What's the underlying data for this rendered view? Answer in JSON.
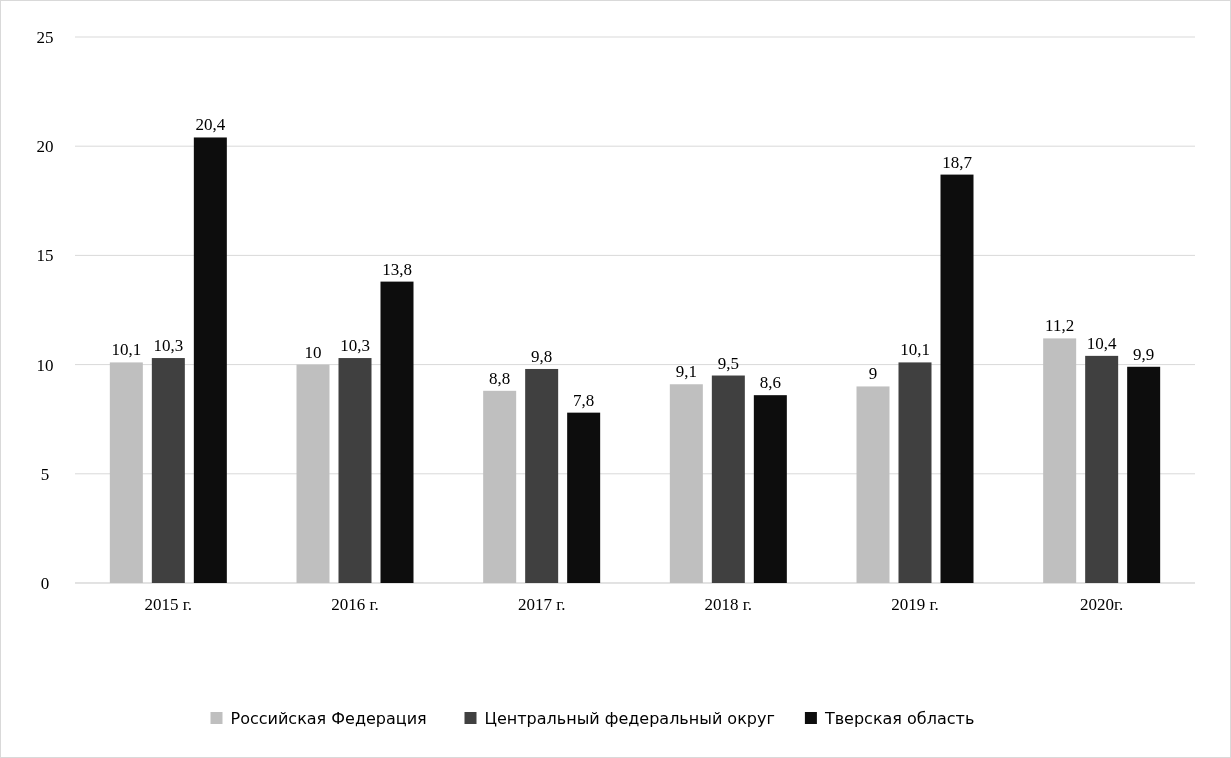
{
  "chart_data": {
    "type": "bar",
    "categories": [
      "2015 г.",
      "2016 г.",
      "2017 г.",
      "2018 г.",
      "2019 г.",
      "2020г."
    ],
    "series": [
      {
        "name": "Российская Федерация",
        "color": "#bfbfbf",
        "values": [
          10.1,
          10,
          8.8,
          9.1,
          9,
          11.2
        ],
        "value_labels": [
          "10,1",
          "10",
          "8,8",
          "9,1",
          "9",
          "11,2"
        ]
      },
      {
        "name": "Центральный федеральный округ",
        "color": "#404040",
        "values": [
          10.3,
          10.3,
          9.8,
          9.5,
          10.1,
          10.4
        ],
        "value_labels": [
          "10,3",
          "10,3",
          "9,8",
          "9,5",
          "10,1",
          "10,4"
        ]
      },
      {
        "name": "Тверская область",
        "color": "#0d0d0d",
        "values": [
          20.4,
          13.8,
          7.8,
          8.6,
          18.7,
          9.9
        ],
        "value_labels": [
          "20,4",
          "13,8",
          "7,8",
          "8,6",
          "18,7",
          "9,9"
        ]
      }
    ],
    "ylim": [
      0,
      25
    ],
    "yticks": [
      0,
      5,
      10,
      15,
      20,
      25
    ],
    "grid": "y",
    "legend": "bottom"
  }
}
